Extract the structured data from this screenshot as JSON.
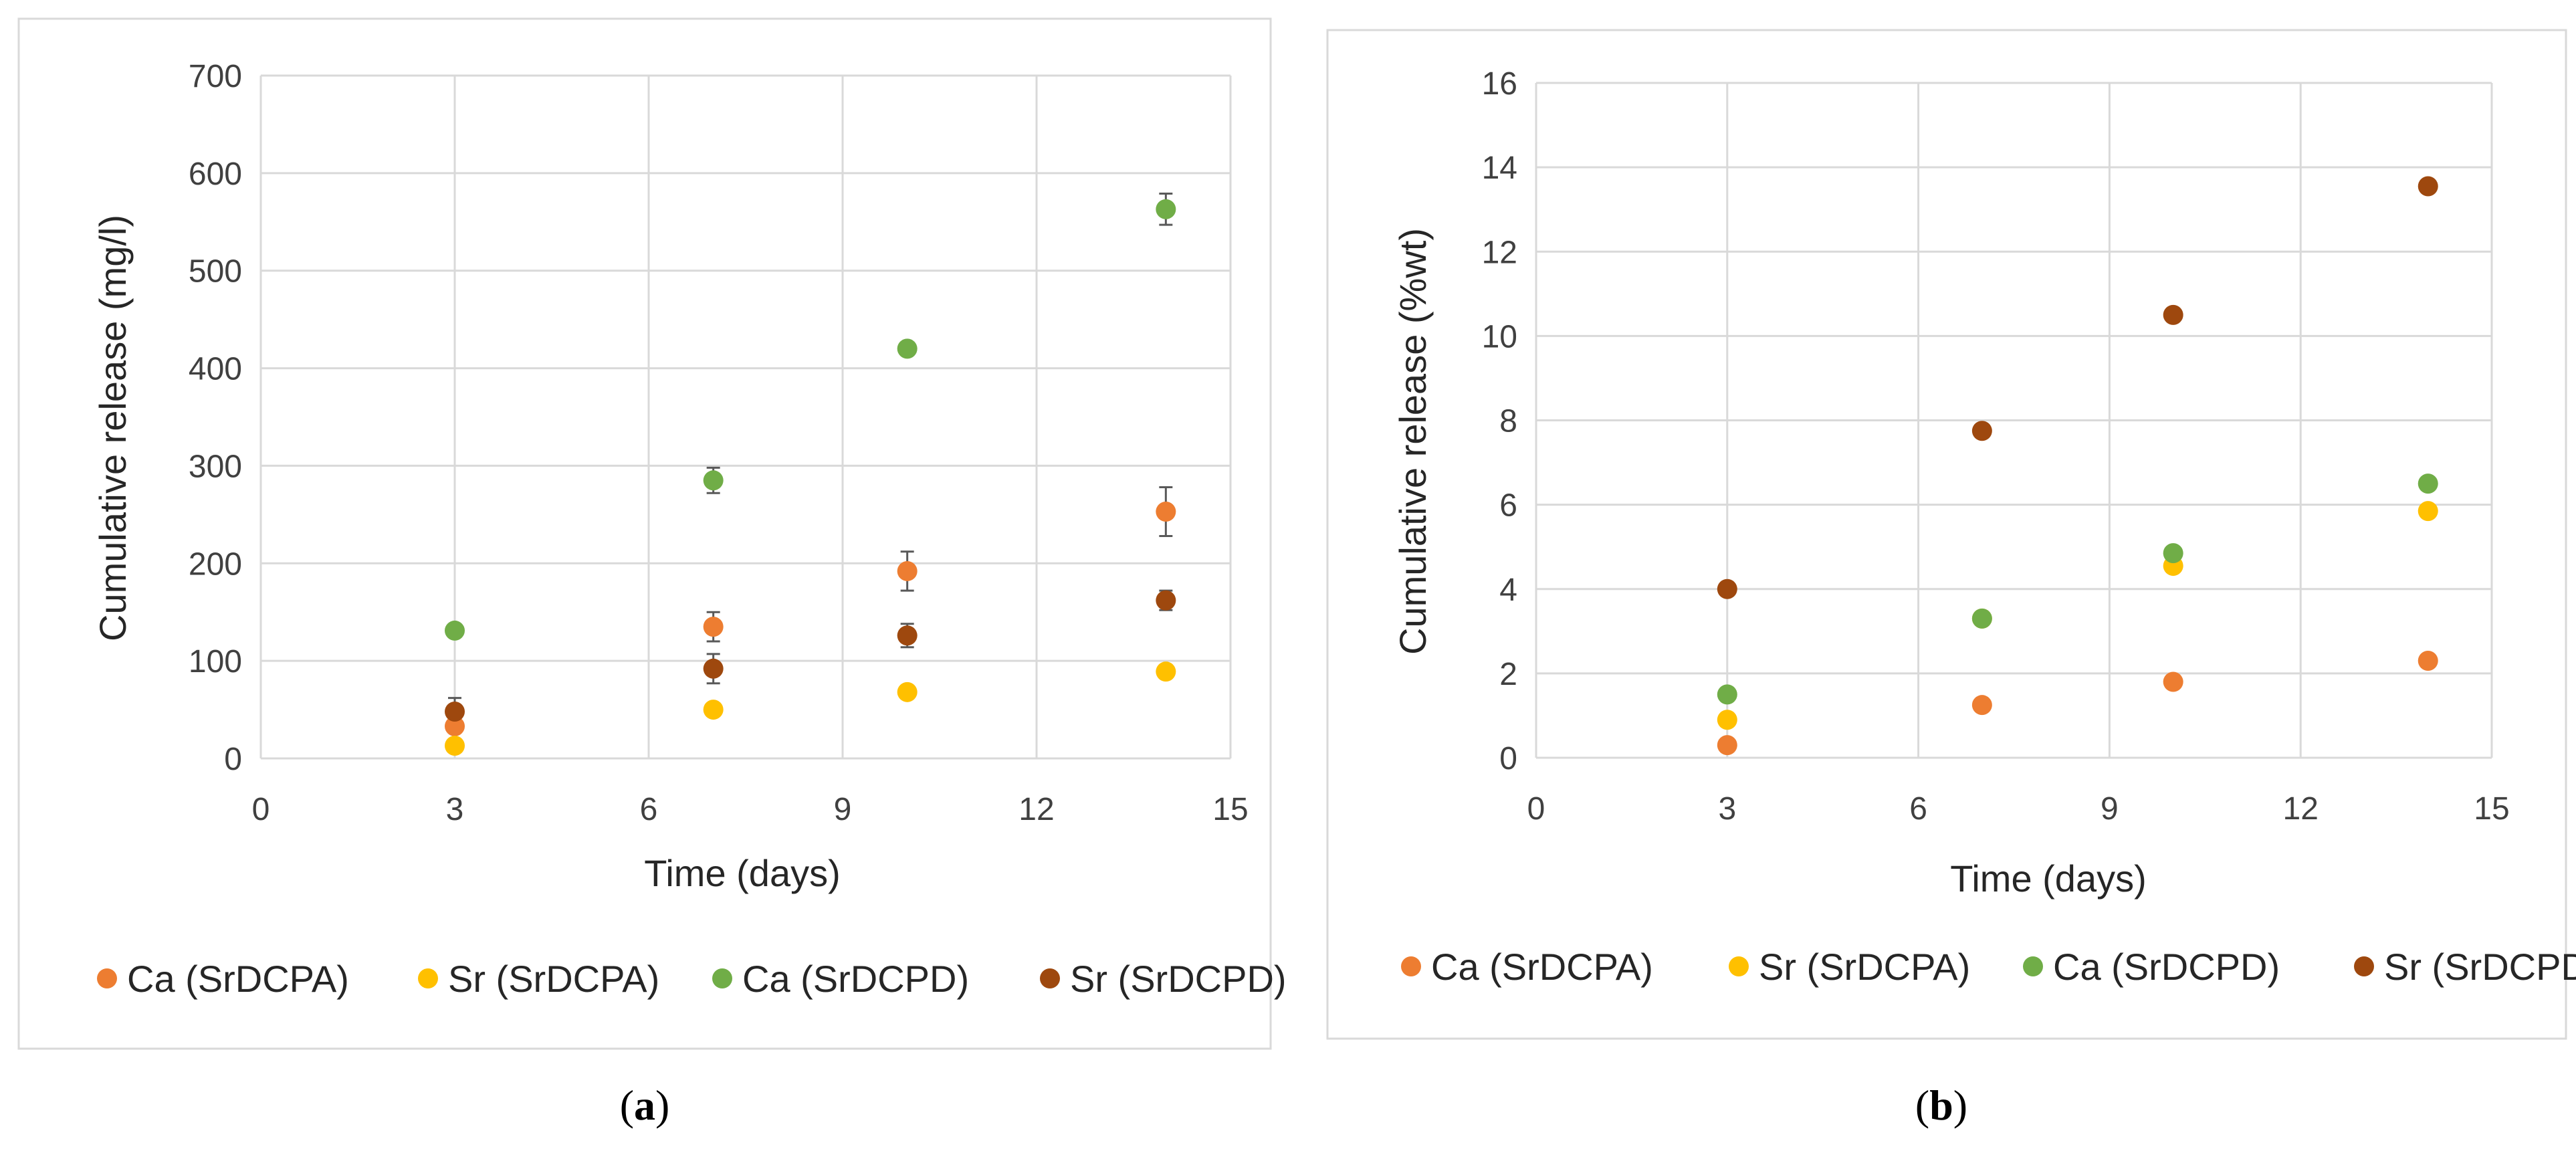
{
  "chart_data": [
    {
      "type": "scatter",
      "caption_letter": "a",
      "caption_open": "(",
      "caption_close": ")",
      "xlabel": "Time (days)",
      "ylabel": "Cumulative release (mg/l)",
      "xlim": [
        0,
        15
      ],
      "ylim": [
        0,
        700
      ],
      "xticks": [
        0,
        3,
        6,
        9,
        12,
        15
      ],
      "yticks": [
        0,
        100,
        200,
        300,
        400,
        500,
        600,
        700
      ],
      "grid": true,
      "legend_position": "bottom",
      "series": [
        {
          "name": "Ca (SrDCPA)",
          "color": "#ED7D31",
          "x": [
            3,
            7,
            10,
            14
          ],
          "y": [
            33,
            135,
            192,
            253
          ],
          "err": [
            0,
            15,
            20,
            25
          ]
        },
        {
          "name": "Sr (SrDCPA)",
          "color": "#FFC000",
          "x": [
            3,
            7,
            10,
            14
          ],
          "y": [
            13,
            50,
            68,
            89
          ],
          "err": [
            0,
            0,
            0,
            0
          ]
        },
        {
          "name": "Ca (SrDCPD)",
          "color": "#70AD47",
          "x": [
            3,
            7,
            10,
            14
          ],
          "y": [
            131,
            285,
            420,
            563
          ],
          "err": [
            0,
            13,
            0,
            16
          ]
        },
        {
          "name": "Sr (SrDCPD)",
          "color": "#9E480E",
          "x": [
            3,
            7,
            10,
            14
          ],
          "y": [
            48,
            92,
            126,
            162
          ],
          "err": [
            14,
            15,
            12,
            10
          ]
        }
      ]
    },
    {
      "type": "scatter",
      "caption_letter": "b",
      "caption_open": "(",
      "caption_close": ")",
      "xlabel": "Time (days)",
      "ylabel": "Cumulative release (%wt)",
      "xlim": [
        0,
        15
      ],
      "ylim": [
        0,
        16
      ],
      "xticks": [
        0,
        3,
        6,
        9,
        12,
        15
      ],
      "yticks": [
        0,
        2,
        4,
        6,
        8,
        10,
        12,
        14,
        16
      ],
      "grid": true,
      "legend_position": "bottom",
      "series": [
        {
          "name": "Ca (SrDCPA)",
          "color": "#ED7D31",
          "x": [
            3,
            7,
            10,
            14
          ],
          "y": [
            0.3,
            1.25,
            1.8,
            2.3
          ],
          "err": [
            0,
            0,
            0,
            0
          ]
        },
        {
          "name": "Sr (SrDCPA)",
          "color": "#FFC000",
          "x": [
            3,
            7,
            10,
            14
          ],
          "y": [
            0.9,
            3.3,
            4.55,
            5.85
          ],
          "err": [
            0,
            0,
            0,
            0
          ]
        },
        {
          "name": "Ca (SrDCPD)",
          "color": "#70AD47",
          "x": [
            3,
            7,
            10,
            14
          ],
          "y": [
            1.5,
            3.3,
            4.85,
            6.5
          ],
          "err": [
            0,
            0,
            0,
            0
          ]
        },
        {
          "name": "Sr (SrDCPD)",
          "color": "#9E480E",
          "x": [
            3,
            7,
            10,
            14
          ],
          "y": [
            4.0,
            7.75,
            10.5,
            13.55
          ],
          "err": [
            0,
            0,
            0,
            0
          ]
        }
      ]
    }
  ]
}
